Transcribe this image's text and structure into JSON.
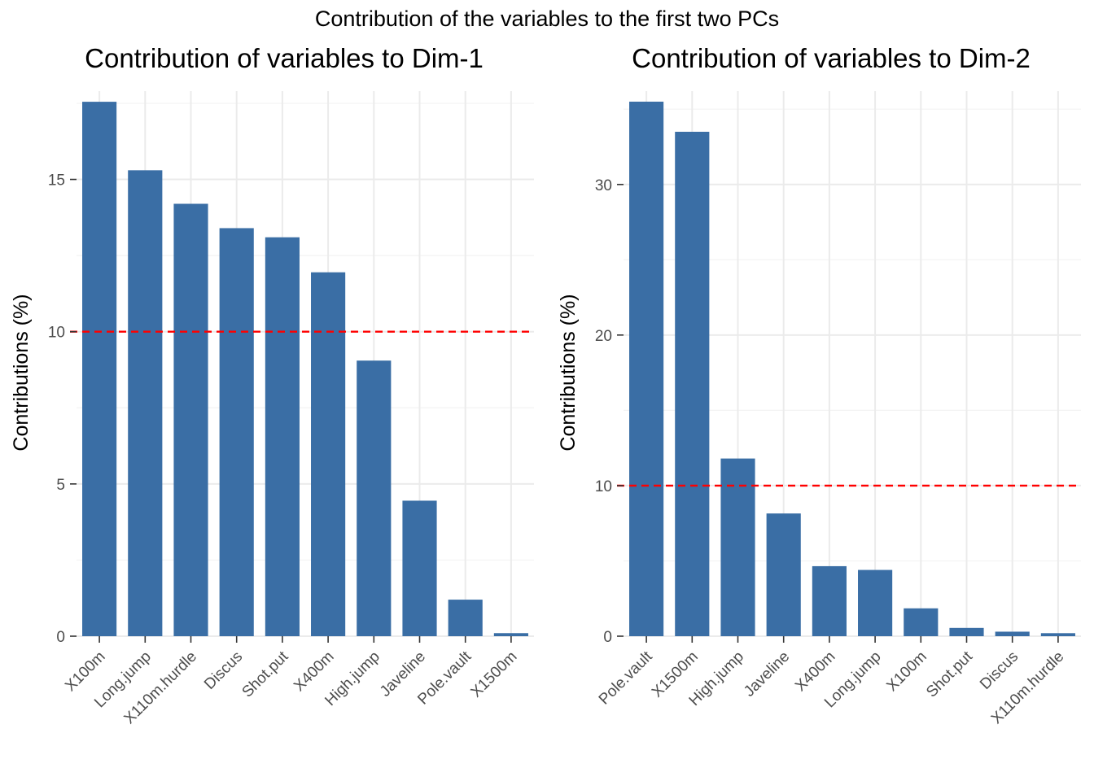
{
  "figure": {
    "title": "Contribution of the variables to the first two PCs",
    "bar_color": "#3a6ea5",
    "reference_color": "#ff0000"
  },
  "chart_data": [
    {
      "type": "bar",
      "title": "Contribution of variables to Dim-1",
      "xlabel": "",
      "ylabel": "Contributions (%)",
      "categories": [
        "X100m",
        "Long.jump",
        "X110m.hurdle",
        "Discus",
        "Shot.put",
        "X400m",
        "High.jump",
        "Javeline",
        "Pole.vault",
        "X1500m"
      ],
      "values": [
        17.55,
        15.3,
        14.2,
        13.4,
        13.1,
        11.95,
        9.05,
        4.45,
        1.2,
        0.1
      ],
      "ylim": [
        0,
        17.9
      ],
      "yticks": [
        0,
        5,
        10,
        15
      ],
      "reference_line": 10,
      "grid": true
    },
    {
      "type": "bar",
      "title": "Contribution of variables to Dim-2",
      "xlabel": "",
      "ylabel": "Contributions (%)",
      "categories": [
        "Pole.vault",
        "X1500m",
        "High.jump",
        "Javeline",
        "X400m",
        "Long.jump",
        "X100m",
        "Shot.put",
        "Discus",
        "X110m.hurdle"
      ],
      "values": [
        35.5,
        33.5,
        11.8,
        8.15,
        4.65,
        4.4,
        1.85,
        0.55,
        0.3,
        0.2
      ],
      "ylim": [
        0,
        36.2
      ],
      "yticks": [
        0,
        10,
        20,
        30
      ],
      "reference_line": 10,
      "grid": true
    }
  ]
}
